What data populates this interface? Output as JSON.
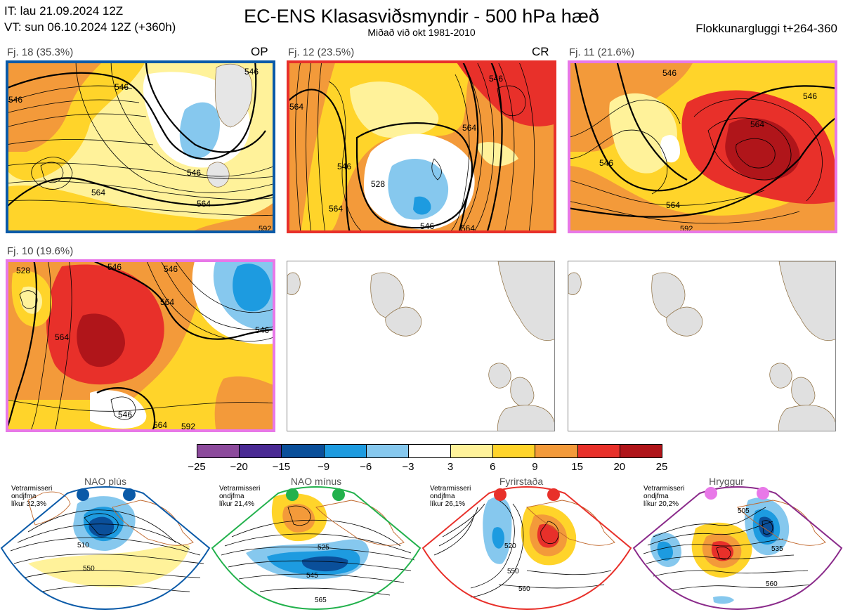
{
  "header": {
    "it_line": "IT: lau 21.09.2024 12Z",
    "vt_line": "VT: sun 06.10.2024 12Z  (+360h)",
    "title": "EC-ENS Klasasviðsmyndir - 500 hPa hæð",
    "subtitle": "Miðað við okt 1981-2010",
    "window": "Flokkunargluggi t+264-360"
  },
  "panels": [
    {
      "label": "Fj. 18 (35.3%)",
      "tag": "OP",
      "frame_color": "#0a5aa8",
      "contours": [
        "546",
        "546",
        "564",
        "546",
        "564",
        "546",
        "592"
      ]
    },
    {
      "label": "Fj. 12 (23.5%)",
      "tag": "CR",
      "frame_color": "#e8302a",
      "contours": [
        "546",
        "564",
        "564",
        "546",
        "564",
        "528",
        "546",
        "564"
      ]
    },
    {
      "label": "Fj. 11 (21.6%)",
      "tag": "",
      "frame_color": "#e878e8",
      "contours": [
        "546",
        "546",
        "564",
        "546",
        "564",
        "592"
      ]
    },
    {
      "label": "Fj. 10 (19.6%)",
      "tag": "",
      "frame_color": "#e878e8",
      "contours": [
        "528",
        "546",
        "546",
        "564",
        "564",
        "546",
        "546",
        "564",
        "592"
      ]
    }
  ],
  "colorbar": {
    "ticks": [
      "−25",
      "−20",
      "−15",
      "−9",
      "−6",
      "−3",
      "3",
      "6",
      "9",
      "15",
      "20",
      "25"
    ],
    "colors": [
      "#8c4a9c",
      "#4a2a94",
      "#0a4f9a",
      "#1d9be0",
      "#86c8ee",
      "#ffffff",
      "#fff29a",
      "#ffd42a",
      "#f39a3a",
      "#e8302a",
      "#b0151a"
    ]
  },
  "regimes": [
    {
      "name": "NAO plús",
      "note_line1": "Vetrarmisseri",
      "note_line2": "ondjfma",
      "note_line3": "líkur 32,3%",
      "dot_color": "#0a5aa8",
      "frame_color": "#0a5aa8",
      "contours": [
        "510",
        "550"
      ]
    },
    {
      "name": "NAO mínus",
      "note_line1": "Vetrarmisseri",
      "note_line2": "ondjfma",
      "note_line3": "líkur 21,4%",
      "dot_color": "#22b14c",
      "frame_color": "#22b14c",
      "contours": [
        "525",
        "545",
        "565"
      ]
    },
    {
      "name": "Fyrirstaða",
      "note_line1": "Vetrarmisseri",
      "note_line2": "ondjfma",
      "note_line3": "líkur 26,1%",
      "dot_color": "#e8302a",
      "frame_color": "#e8302a",
      "contours": [
        "520",
        "550",
        "560"
      ]
    },
    {
      "name": "Hryggur",
      "note_line1": "Vetrarmisseri",
      "note_line2": "ondjfma",
      "note_line3": "líkur 20,2%",
      "dot_color": "#e878e8",
      "frame_color": "#8a2a8a",
      "contours": [
        "505",
        "535",
        "560"
      ]
    }
  ]
}
